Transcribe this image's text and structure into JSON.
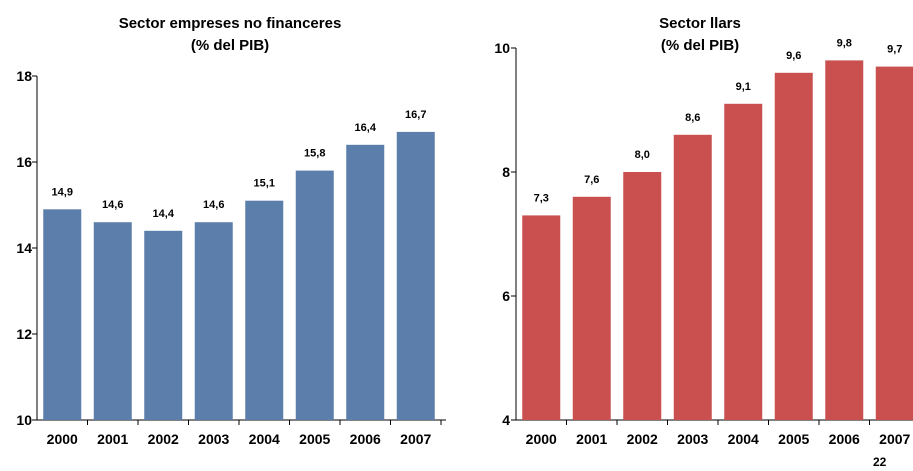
{
  "chart_data": [
    {
      "type": "bar",
      "title": [
        "Sector empreses no financeres",
        "(% del PIB)"
      ],
      "xlabel": "",
      "ylabel": "",
      "categories": [
        "2000",
        "2001",
        "2002",
        "2003",
        "2004",
        "2005",
        "2006",
        "2007"
      ],
      "values": [
        14.9,
        14.6,
        14.4,
        14.6,
        15.1,
        15.8,
        16.4,
        16.7
      ],
      "data_labels": [
        "14,9",
        "14,6",
        "14,4",
        "14,6",
        "15,1",
        "15,8",
        "16,4",
        "16,7"
      ],
      "ylim": [
        10,
        18
      ],
      "yticks": [
        10,
        12,
        14,
        16,
        18
      ],
      "color": "#5b7faa",
      "grid": false
    },
    {
      "type": "bar",
      "title": [
        "Sector llars",
        "(% del PIB)"
      ],
      "xlabel": "",
      "ylabel": "",
      "categories": [
        "2000",
        "2001",
        "2002",
        "2003",
        "2004",
        "2005",
        "2006",
        "2007"
      ],
      "values": [
        7.3,
        7.6,
        8.0,
        8.6,
        9.1,
        9.6,
        9.8,
        9.7
      ],
      "data_labels": [
        "7,3",
        "7,6",
        "8,0",
        "8,6",
        "9,1",
        "9,6",
        "9,8",
        "9,7"
      ],
      "ylim": [
        4,
        10
      ],
      "yticks": [
        4,
        6,
        8,
        10
      ],
      "color": "#c9504f",
      "grid": false
    }
  ],
  "page_number": "22"
}
